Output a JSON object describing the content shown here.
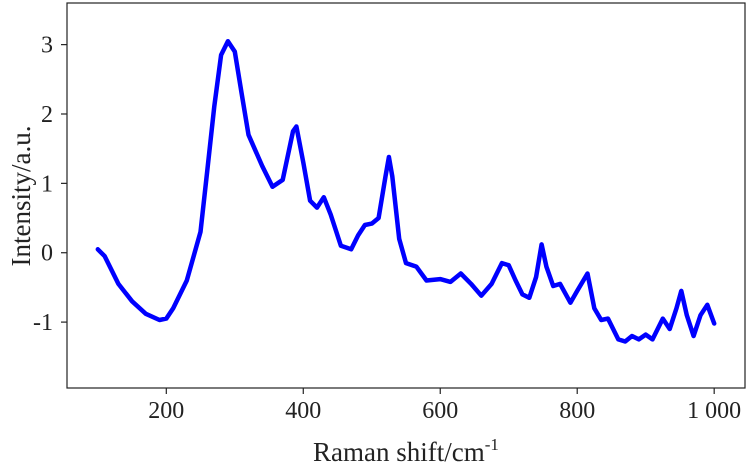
{
  "chart_data": {
    "type": "line",
    "title": "",
    "xlabel": "Raman shift/cm",
    "xlabel_sup": "-1",
    "ylabel": "Intensity/a.u.",
    "xlim": [
      55,
      1045
    ],
    "ylim": [
      -1.95,
      3.6
    ],
    "xticks": [
      200,
      400,
      600,
      800,
      1000
    ],
    "xtick_labels": [
      "200",
      "400",
      "600",
      "800",
      "1 000"
    ],
    "yticks": [
      -1,
      0,
      1,
      2,
      3
    ],
    "ytick_labels": [
      "-1",
      "0",
      "1",
      "2",
      "3"
    ],
    "grid": false,
    "legend": false,
    "x": [
      100,
      110,
      130,
      150,
      170,
      190,
      200,
      210,
      230,
      250,
      260,
      270,
      280,
      290,
      300,
      310,
      320,
      340,
      355,
      370,
      385,
      390,
      400,
      410,
      420,
      430,
      440,
      455,
      470,
      480,
      490,
      500,
      510,
      520,
      525,
      530,
      540,
      550,
      565,
      580,
      600,
      615,
      630,
      645,
      660,
      675,
      690,
      700,
      710,
      720,
      730,
      740,
      748,
      755,
      765,
      775,
      790,
      800,
      815,
      825,
      835,
      845,
      860,
      870,
      880,
      890,
      900,
      910,
      925,
      935,
      945,
      952,
      960,
      970,
      980,
      990,
      1000
    ],
    "series": [
      {
        "color": "#0000ff",
        "values": [
          0.05,
          -0.05,
          -0.45,
          -0.7,
          -0.88,
          -0.97,
          -0.95,
          -0.8,
          -0.4,
          0.3,
          1.2,
          2.1,
          2.85,
          3.05,
          2.9,
          2.3,
          1.7,
          1.25,
          0.95,
          1.05,
          1.75,
          1.82,
          1.3,
          0.75,
          0.65,
          0.8,
          0.55,
          0.1,
          0.05,
          0.25,
          0.4,
          0.42,
          0.5,
          1.1,
          1.38,
          1.1,
          0.2,
          -0.15,
          -0.2,
          -0.4,
          -0.38,
          -0.42,
          -0.3,
          -0.45,
          -0.62,
          -0.45,
          -0.15,
          -0.18,
          -0.4,
          -0.6,
          -0.65,
          -0.35,
          0.12,
          -0.2,
          -0.48,
          -0.45,
          -0.72,
          -0.55,
          -0.3,
          -0.8,
          -0.97,
          -0.95,
          -1.25,
          -1.28,
          -1.2,
          -1.25,
          -1.18,
          -1.25,
          -0.95,
          -1.1,
          -0.8,
          -0.55,
          -0.9,
          -1.2,
          -0.9,
          -0.75,
          -1.02
        ]
      }
    ]
  }
}
